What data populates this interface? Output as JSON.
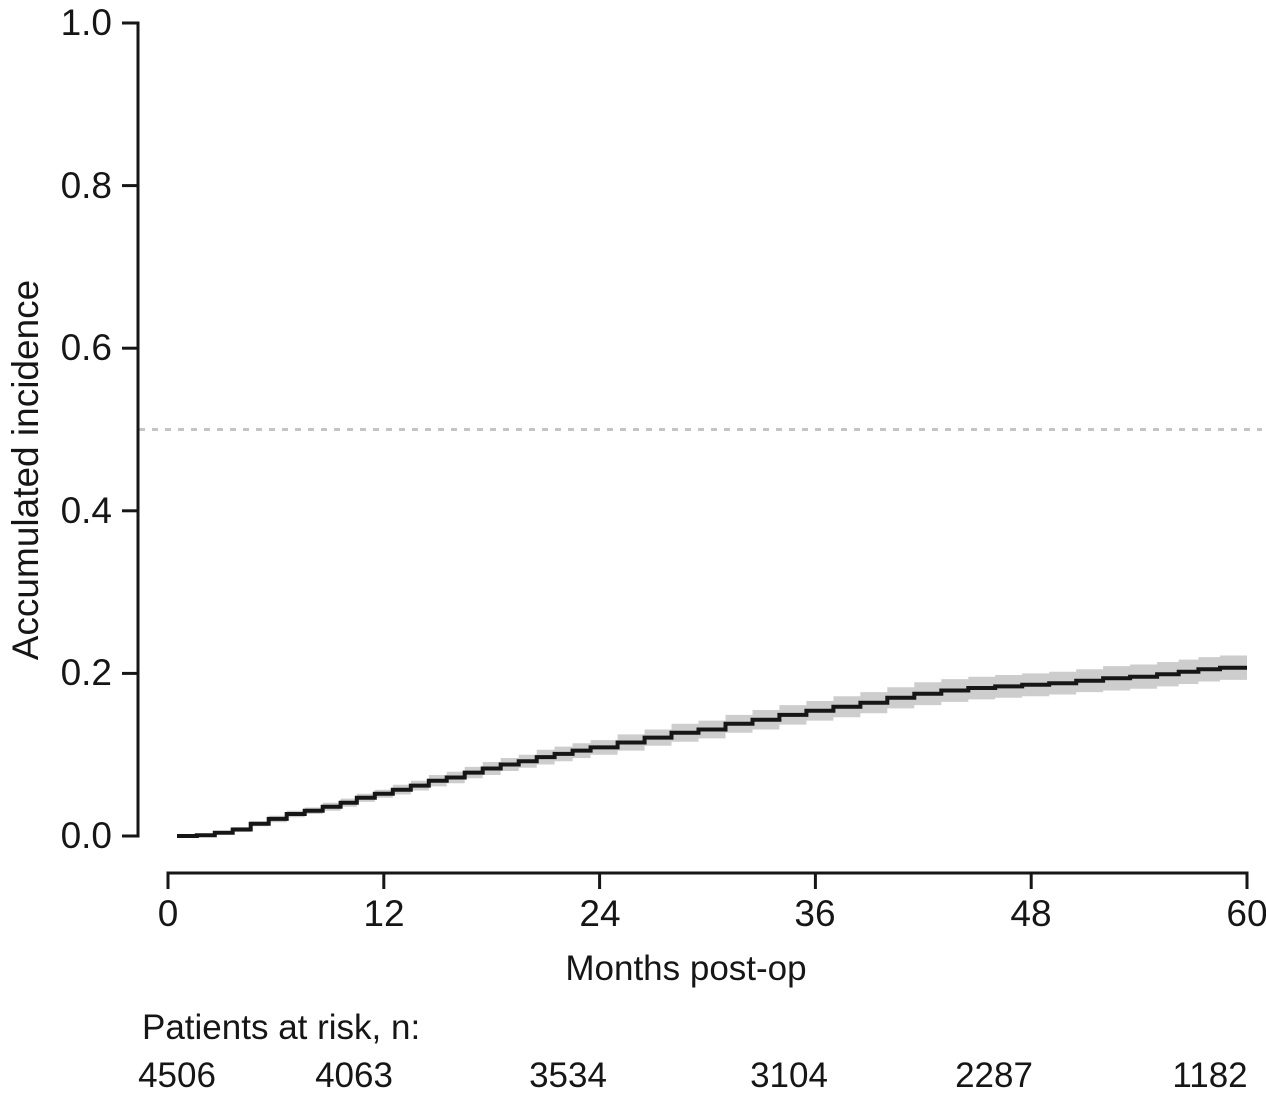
{
  "chart_data": {
    "type": "line",
    "variant": "kaplan-meier-cumulative-incidence-step-curve",
    "title": "",
    "xlabel": "Months post-op",
    "ylabel": "Accumulated incidence",
    "xlim": [
      0,
      60
    ],
    "ylim": [
      0.0,
      1.0
    ],
    "x_ticks": [
      0,
      12,
      24,
      36,
      48,
      60
    ],
    "x_tick_labels": [
      "0",
      "12",
      "24",
      "36",
      "48",
      "60"
    ],
    "y_ticks": [
      0.0,
      0.2,
      0.4,
      0.6,
      0.8,
      1.0
    ],
    "y_tick_labels": [
      "0.0",
      "0.2",
      "0.4",
      "0.6",
      "0.8",
      "1.0"
    ],
    "grid": false,
    "legend": "none",
    "axis_color": "#161616",
    "reference_line": {
      "y": 0.5,
      "style": "dashed",
      "color": "#c4c4c4"
    },
    "series": [
      {
        "name": "Accumulated incidence",
        "step": true,
        "color": "#161616",
        "ci_color": "#cdcdcd",
        "points_format": [
          "months",
          "value",
          "ci_lower",
          "ci_upper"
        ],
        "points": [
          [
            0.5,
            0.0,
            0.0,
            0.0
          ],
          [
            1.6,
            0.001,
            0.0,
            0.003
          ],
          [
            2.6,
            0.004,
            0.002,
            0.006
          ],
          [
            3.6,
            0.008,
            0.005,
            0.011
          ],
          [
            4.6,
            0.015,
            0.012,
            0.018
          ],
          [
            5.6,
            0.021,
            0.017,
            0.025
          ],
          [
            6.6,
            0.027,
            0.023,
            0.031
          ],
          [
            7.6,
            0.031,
            0.027,
            0.035
          ],
          [
            8.6,
            0.036,
            0.031,
            0.041
          ],
          [
            9.6,
            0.041,
            0.036,
            0.046
          ],
          [
            10.5,
            0.047,
            0.042,
            0.052
          ],
          [
            11.5,
            0.052,
            0.047,
            0.057
          ],
          [
            12.5,
            0.057,
            0.051,
            0.063
          ],
          [
            13.5,
            0.062,
            0.056,
            0.068
          ],
          [
            14.5,
            0.068,
            0.061,
            0.075
          ],
          [
            15.5,
            0.072,
            0.065,
            0.079
          ],
          [
            16.5,
            0.078,
            0.071,
            0.085
          ],
          [
            17.5,
            0.083,
            0.075,
            0.091
          ],
          [
            18.5,
            0.088,
            0.08,
            0.096
          ],
          [
            19.5,
            0.092,
            0.084,
            0.1
          ],
          [
            20.5,
            0.097,
            0.088,
            0.106
          ],
          [
            21.5,
            0.101,
            0.092,
            0.11
          ],
          [
            22.5,
            0.105,
            0.096,
            0.114
          ],
          [
            23.5,
            0.109,
            0.1,
            0.118
          ],
          [
            25.0,
            0.115,
            0.105,
            0.125
          ],
          [
            26.5,
            0.121,
            0.111,
            0.131
          ],
          [
            28.0,
            0.127,
            0.116,
            0.138
          ],
          [
            29.5,
            0.131,
            0.12,
            0.142
          ],
          [
            31.0,
            0.138,
            0.127,
            0.149
          ],
          [
            32.5,
            0.143,
            0.131,
            0.155
          ],
          [
            34.0,
            0.149,
            0.137,
            0.161
          ],
          [
            35.5,
            0.154,
            0.142,
            0.166
          ],
          [
            37.0,
            0.159,
            0.146,
            0.172
          ],
          [
            38.5,
            0.164,
            0.151,
            0.177
          ],
          [
            40.0,
            0.17,
            0.157,
            0.183
          ],
          [
            41.5,
            0.175,
            0.161,
            0.189
          ],
          [
            43.0,
            0.179,
            0.165,
            0.193
          ],
          [
            44.5,
            0.182,
            0.168,
            0.196
          ],
          [
            46.0,
            0.184,
            0.17,
            0.198
          ],
          [
            47.5,
            0.186,
            0.172,
            0.2
          ],
          [
            49.0,
            0.188,
            0.174,
            0.202
          ],
          [
            50.5,
            0.191,
            0.177,
            0.205
          ],
          [
            52.0,
            0.194,
            0.179,
            0.209
          ],
          [
            53.5,
            0.196,
            0.181,
            0.211
          ],
          [
            55.0,
            0.199,
            0.184,
            0.214
          ],
          [
            56.2,
            0.202,
            0.187,
            0.217
          ],
          [
            57.3,
            0.205,
            0.19,
            0.22
          ],
          [
            58.5,
            0.207,
            0.192,
            0.222
          ],
          [
            60.0,
            0.207,
            0.192,
            0.222
          ]
        ]
      }
    ],
    "at_risk": {
      "label": "Patients at risk, n:",
      "times": [
        0,
        12,
        24,
        36,
        48,
        60
      ],
      "counts": [
        "4506",
        "4063",
        "3534",
        "3104",
        "2287",
        "1182"
      ]
    }
  }
}
